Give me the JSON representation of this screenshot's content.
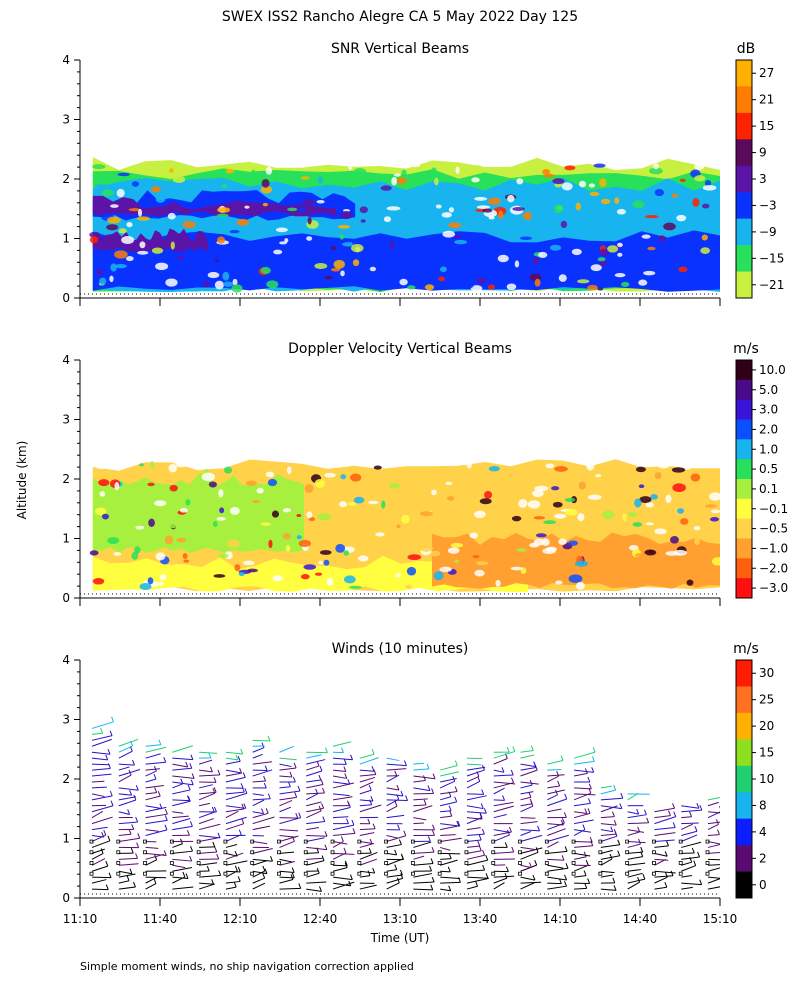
{
  "page_title": "SWEX ISS2 Rancho Alegre CA   5 May 2022 Day 125",
  "y_axis_label": "Altitude (km)",
  "x_axis_label": "Time (UT)",
  "footnote": "Simple moment winds, no ship navigation correction applied",
  "chart_data": [
    {
      "id": "snr",
      "type": "heatmap",
      "title": "SNR Vertical Beams",
      "unit": "dB",
      "xlabel": "",
      "ylabel": "Altitude (km)",
      "ylim": [
        0,
        4
      ],
      "y_ticks": [
        "0",
        "1",
        "2",
        "3",
        "4"
      ],
      "x_ticks": [
        "11:10",
        "11:40",
        "12:10",
        "12:40",
        "13:10",
        "13:40",
        "14:10",
        "14:40",
        "15:10"
      ],
      "show_x_tick_labels": false,
      "colorbar": {
        "labels": [
          "27",
          "21",
          "15",
          "9",
          "3",
          "−3",
          "−9",
          "−15",
          "−21"
        ],
        "colors": [
          "#ffb000",
          "#ff7c00",
          "#ff2200",
          "#5a0a5c",
          "#5a14a8",
          "#0a32ff",
          "#18b4f0",
          "#28e05a",
          "#c8f040"
        ]
      },
      "layers": [
        {
          "band": [
            0.15,
            2.25
          ],
          "t_end": 1.0,
          "color": "#c8f040"
        },
        {
          "band": [
            0.15,
            2.1
          ],
          "t_end": 1.0,
          "color": "#28e05a"
        },
        {
          "band": [
            0.15,
            1.9
          ],
          "t_end": 1.0,
          "color": "#18b4f0"
        },
        {
          "band": [
            0.15,
            1.05
          ],
          "t_end": 1.0,
          "color": "#0a32ff"
        },
        {
          "band": [
            1.35,
            1.7
          ],
          "t_end": 0.43,
          "color": "#0a32ff"
        },
        {
          "band": [
            1.42,
            1.6
          ],
          "t_end": 0.4,
          "color": "#5a14a8"
        },
        {
          "band": [
            0.8,
            1.05
          ],
          "t_end": 0.2,
          "color": "#5a14a8"
        }
      ]
    },
    {
      "id": "doppler",
      "type": "heatmap",
      "title": "Doppler Velocity Vertical Beams",
      "unit": "m/s",
      "xlabel": "",
      "ylabel": "Altitude (km)",
      "ylim": [
        0,
        4
      ],
      "y_ticks": [
        "0",
        "1",
        "2",
        "3",
        "4"
      ],
      "x_ticks": [
        "11:10",
        "11:40",
        "12:10",
        "12:40",
        "13:10",
        "13:40",
        "14:10",
        "14:40",
        "15:10"
      ],
      "show_x_tick_labels": false,
      "colorbar": {
        "labels": [
          "10.0",
          "5.0",
          "3.0",
          "2.0",
          "1.0",
          "0.5",
          "0.1",
          "−0.1",
          "−0.5",
          "−1.0",
          "−2.0",
          "−3.0"
        ],
        "colors": [
          "#300018",
          "#4a0a8a",
          "#3a14d8",
          "#0a50ff",
          "#18b4f0",
          "#28e05a",
          "#a8f040",
          "#ffff40",
          "#ffd24a",
          "#ffa030",
          "#ff6010",
          "#ff1010"
        ]
      },
      "layers": [
        {
          "band": [
            0.15,
            2.25
          ],
          "t_end": 1.0,
          "color": "#ffd24a"
        },
        {
          "band": [
            0.8,
            2.0
          ],
          "t_end": 0.35,
          "color": "#a8f040"
        },
        {
          "band": [
            0.15,
            0.6
          ],
          "t_end": 0.7,
          "color": "#ffff40"
        },
        {
          "band": [
            0.2,
            1.0
          ],
          "t_end": 1.0,
          "t_start": 0.55,
          "color": "#ffa030"
        }
      ]
    },
    {
      "id": "winds",
      "type": "scatter",
      "title": "Winds (10 minutes)",
      "unit": "m/s",
      "xlabel": "Time (UT)",
      "ylabel": "Altitude (km)",
      "ylim": [
        0,
        4
      ],
      "y_ticks": [
        "0",
        "1",
        "2",
        "3",
        "4"
      ],
      "x_ticks": [
        "11:10",
        "11:40",
        "12:10",
        "12:40",
        "13:10",
        "13:40",
        "14:10",
        "14:40",
        "15:10"
      ],
      "show_x_tick_labels": true,
      "colorbar": {
        "labels": [
          "30",
          "25",
          "20",
          "15",
          "10",
          "8",
          "4",
          "2",
          "0"
        ],
        "colors": [
          "#ff1c00",
          "#ff7020",
          "#ffb000",
          "#8ce020",
          "#20d070",
          "#18b4f0",
          "#0a1eff",
          "#5a0a70",
          "#000000"
        ]
      },
      "profile_count": 24,
      "profile_top_km": [
        2.9,
        2.6,
        2.6,
        2.55,
        2.5,
        2.5,
        2.7,
        2.5,
        2.5,
        2.6,
        2.4,
        2.45,
        2.3,
        2.2,
        2.4,
        2.5,
        2.5,
        2.3,
        2.4,
        1.9,
        1.8,
        1.5,
        1.6,
        1.7
      ]
    }
  ]
}
